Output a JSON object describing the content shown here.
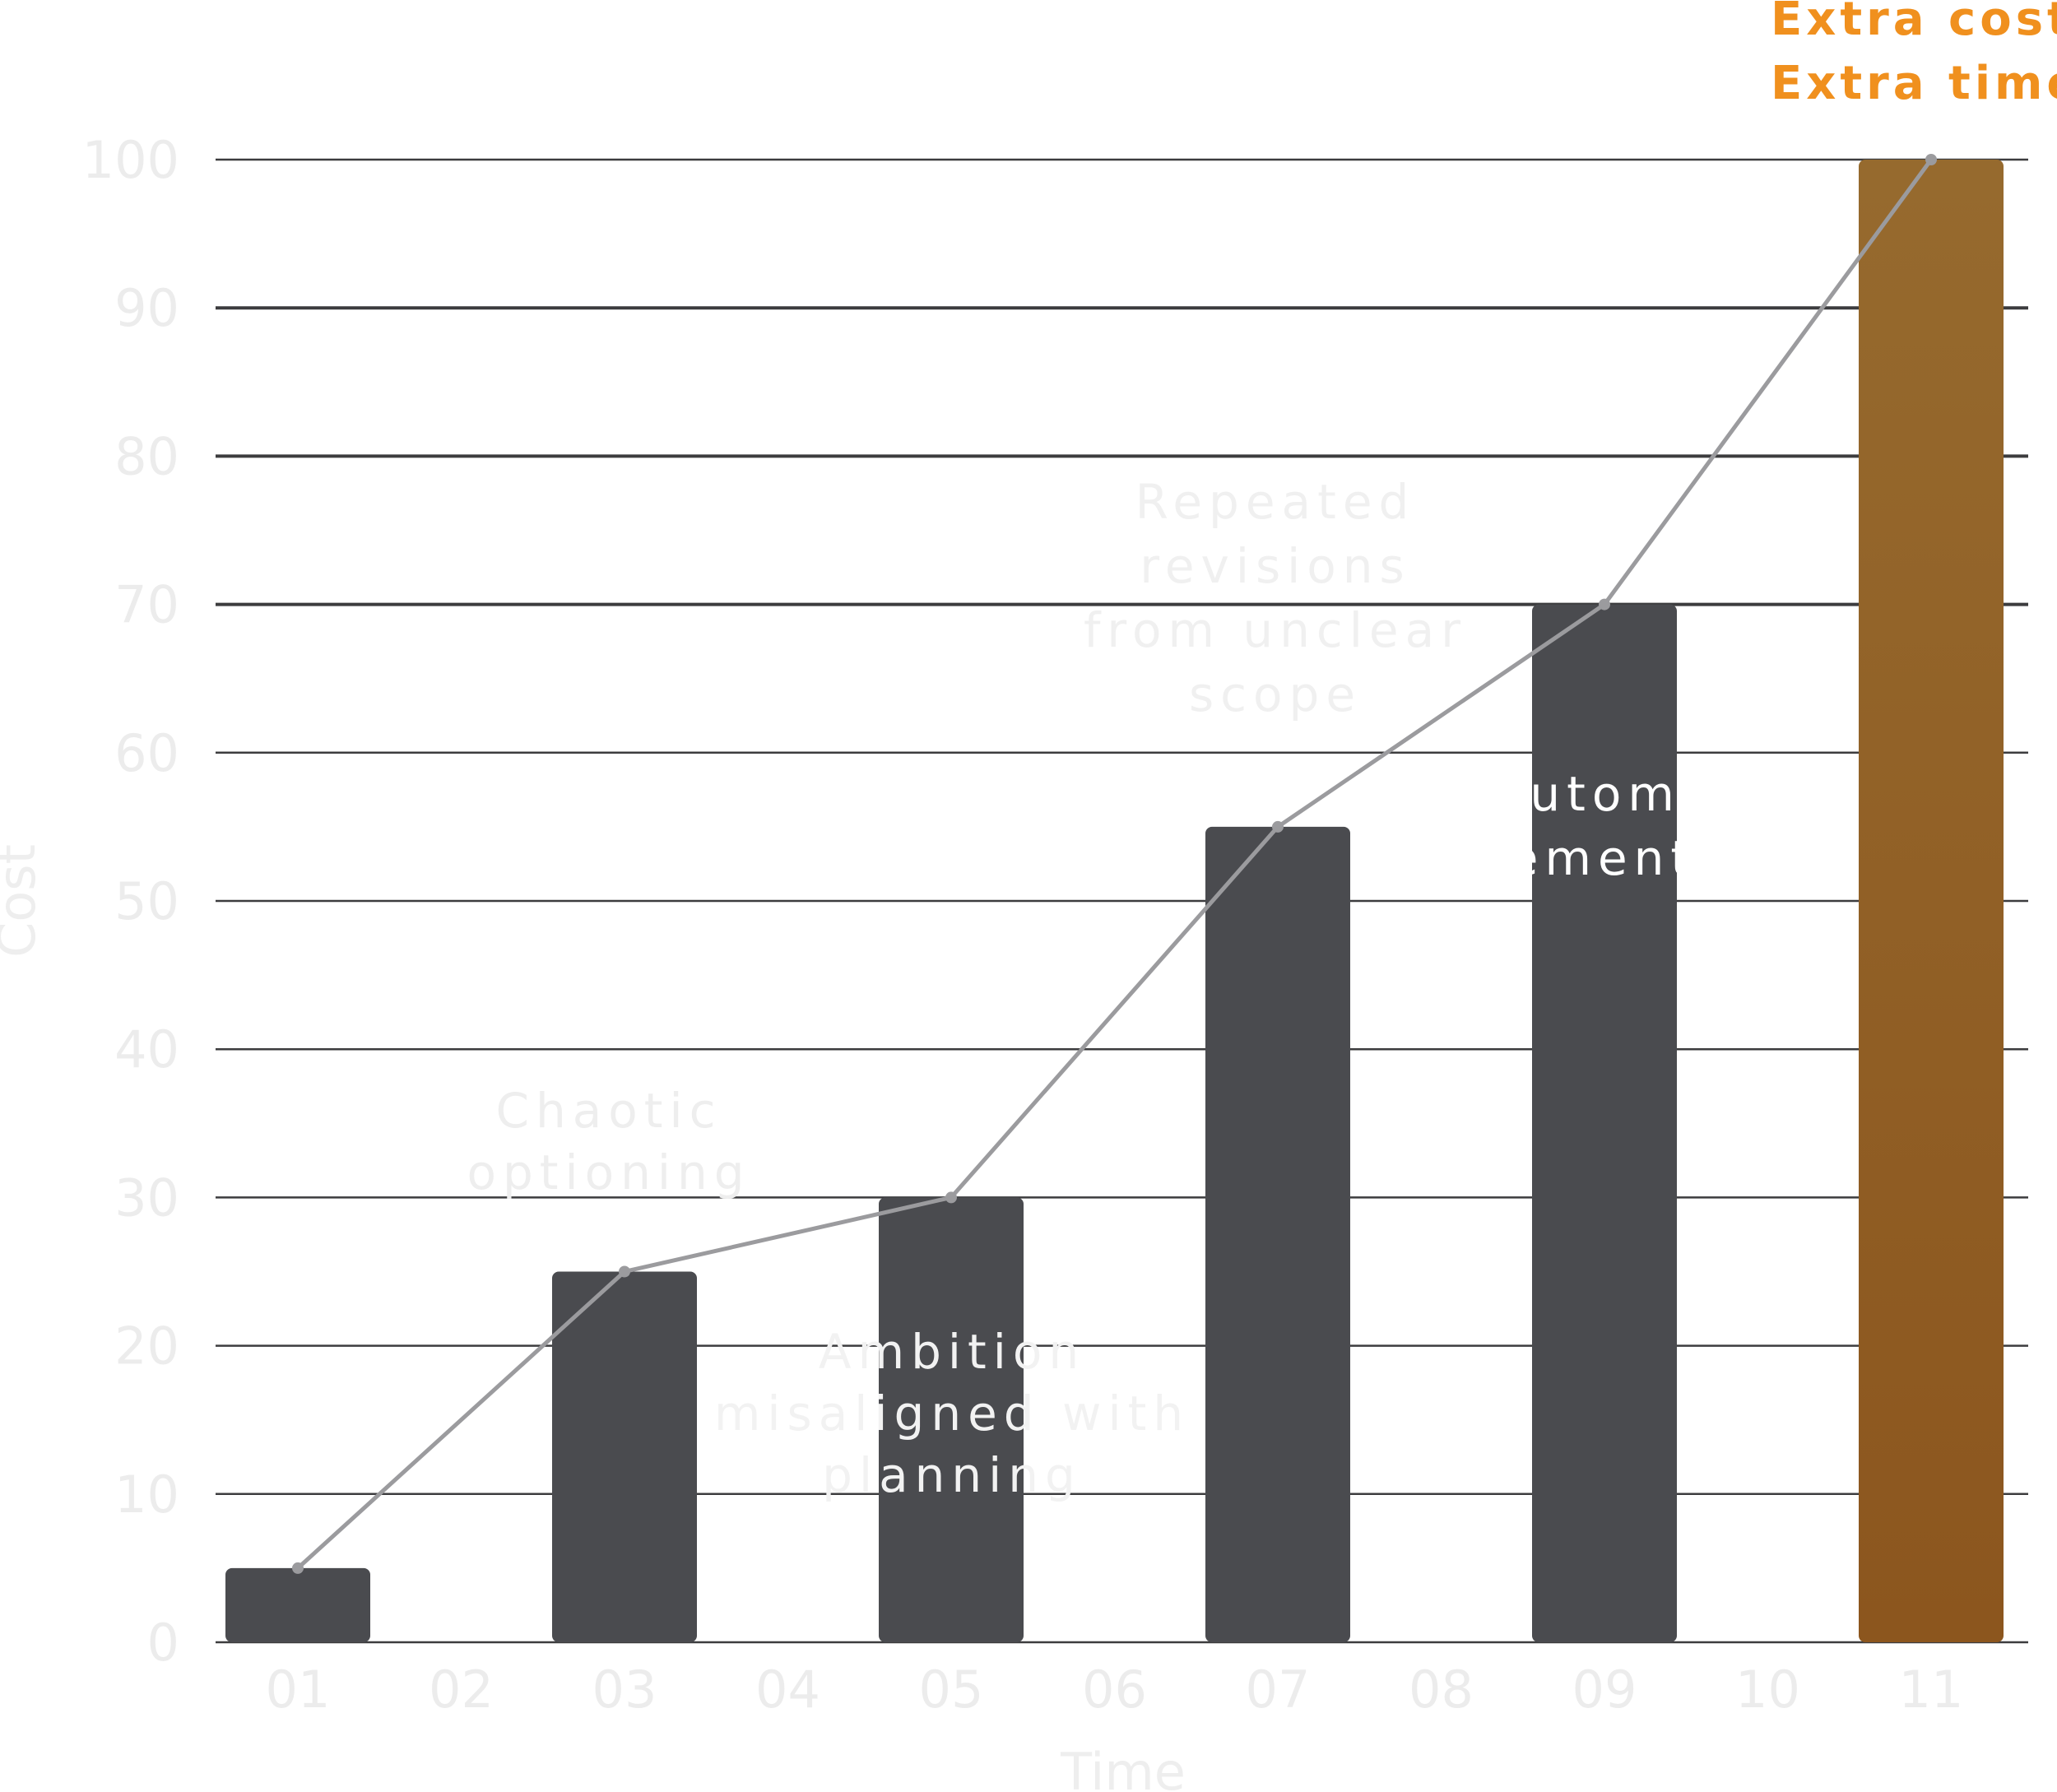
{
  "chart_data": {
    "type": "bar",
    "title": "",
    "xlabel": "Time",
    "ylabel": "Cost",
    "ylim": [
      0,
      100
    ],
    "yticks": [
      "0",
      "10",
      "20",
      "30",
      "40",
      "50",
      "60",
      "70",
      "80",
      "90",
      "100"
    ],
    "categories": [
      "01",
      "02",
      "03",
      "04",
      "05",
      "06",
      "07",
      "08",
      "09",
      "10",
      "11"
    ],
    "series": [
      {
        "name": "bars",
        "kind": "bar",
        "values": [
          5,
          null,
          25,
          null,
          30,
          null,
          55,
          null,
          70,
          null,
          100
        ],
        "colors": [
          "#4a4b4f",
          null,
          "#4a4b4f",
          null,
          "#4a4b4f",
          null,
          "#4a4b4f",
          null,
          "#4a4b4f",
          null,
          "#8e5a24"
        ]
      },
      {
        "name": "trend",
        "kind": "line",
        "points": [
          {
            "x": "01",
            "y": 5
          },
          {
            "x": "03",
            "y": 25
          },
          {
            "x": "05",
            "y": 30
          },
          {
            "x": "07",
            "y": 55
          },
          {
            "x": "09",
            "y": 70
          },
          {
            "x": "11",
            "y": 100
          }
        ],
        "color": "#9b9b9e"
      }
    ],
    "annotations": [
      {
        "id": "chaotic",
        "lines": [
          "Chaotic",
          "optioning"
        ],
        "near": "03",
        "color": "#eeeeee"
      },
      {
        "id": "ambition",
        "lines": [
          "Ambition",
          "misaligned with",
          "planning"
        ],
        "near": "05",
        "color": "#f2f2f2"
      },
      {
        "id": "revisions",
        "lines": [
          "Repeated",
          "revisions",
          "from unclear",
          "scope"
        ],
        "near": "07",
        "color": "#f0f0f0"
      },
      {
        "id": "automation",
        "lines": [
          "No automation",
          "implementation"
        ],
        "near": "09",
        "color": "#ffffff"
      }
    ],
    "callout": {
      "lines": [
        "Extra cost",
        "Extra time"
      ],
      "color": "#f0901e"
    },
    "colors": {
      "grid": "#3c3c3e",
      "bar": "#4a4b4f",
      "highlight_top": "#966a2e",
      "highlight_bottom": "#8c561e",
      "tick_text": "#ececec",
      "axis_title": "#eeeeee",
      "line": "#9b9b9e"
    }
  }
}
